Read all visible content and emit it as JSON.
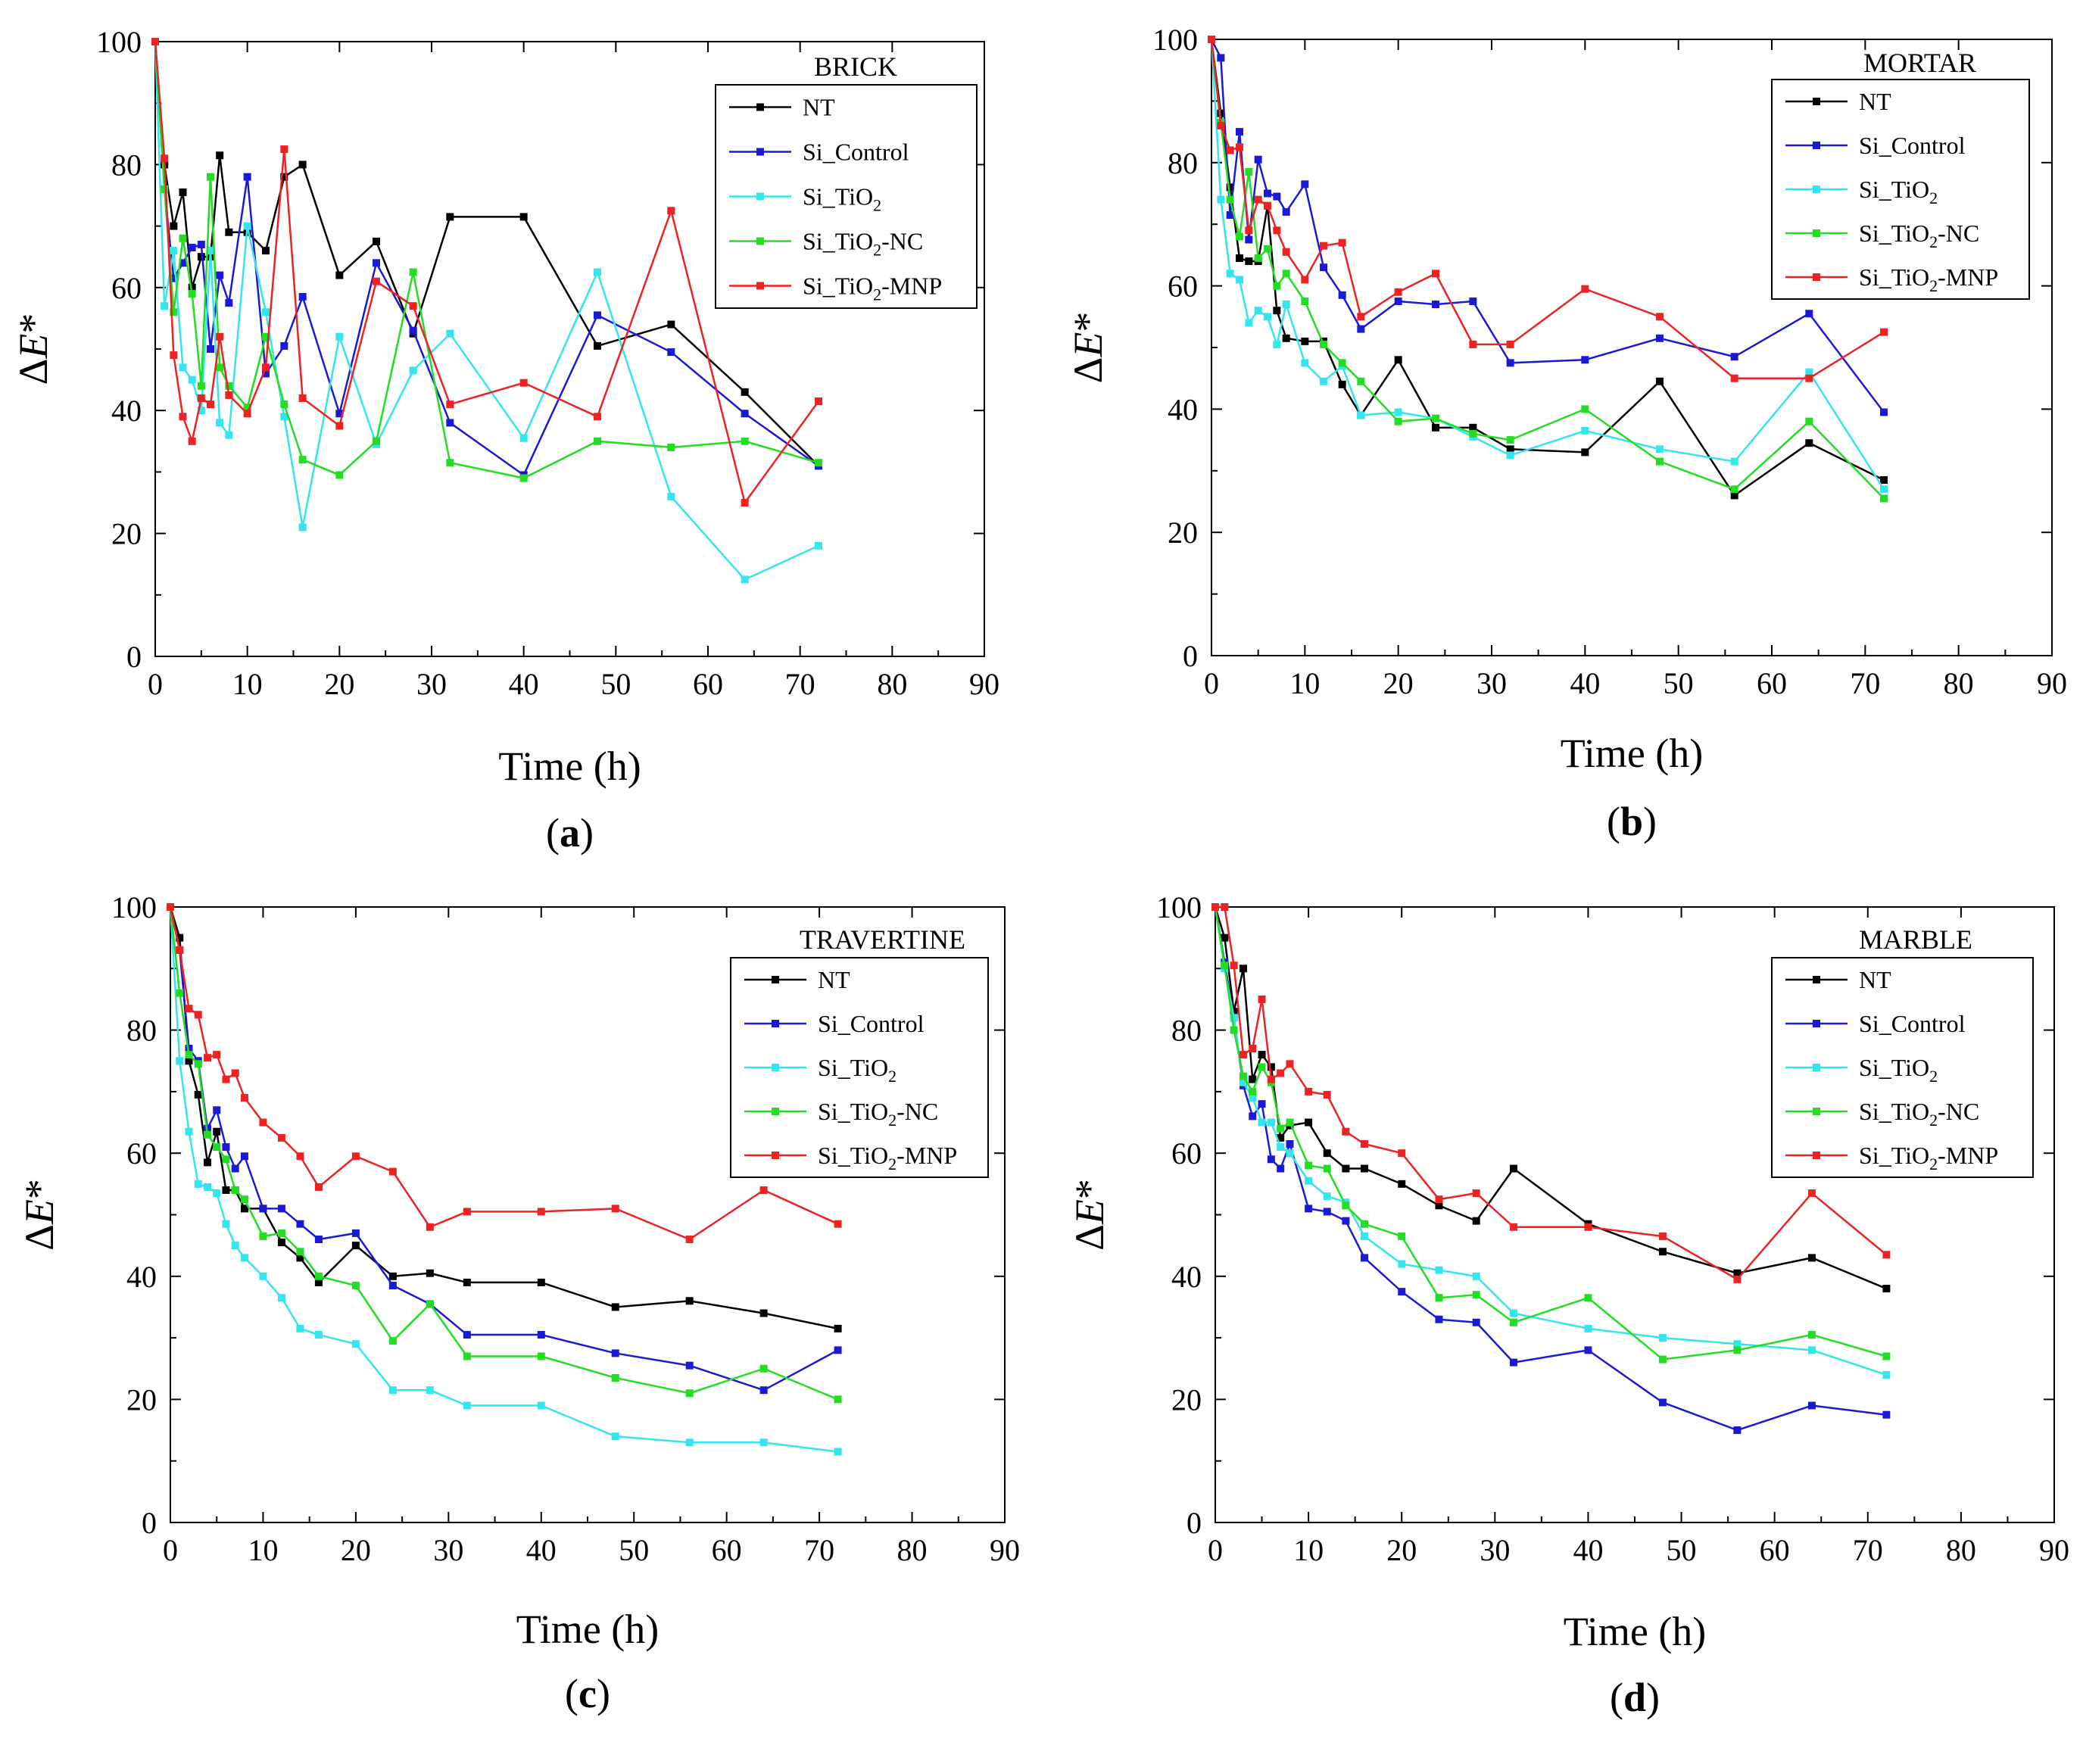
{
  "figure": {
    "xlabel": "Time (h)",
    "ylabel_prefix": "Δ",
    "ylabel_var": "E",
    "ylabel_suffix": "*"
  },
  "series_meta": [
    {
      "key": "NT",
      "color": "#000000",
      "parts": [
        {
          "t": "NT"
        }
      ]
    },
    {
      "key": "Si_Control",
      "color": "#1a1ad6",
      "parts": [
        {
          "t": "Si_Control"
        }
      ]
    },
    {
      "key": "Si_TiO2",
      "color": "#33e5ee",
      "parts": [
        {
          "t": "Si_TiO"
        },
        {
          "t": "2",
          "sub": true
        }
      ]
    },
    {
      "key": "Si_TiO2-NC",
      "color": "#22dd22",
      "parts": [
        {
          "t": "Si_TiO"
        },
        {
          "t": "2",
          "sub": true
        },
        {
          "t": "-NC"
        }
      ]
    },
    {
      "key": "Si_TiO2-MNP",
      "color": "#ee2222",
      "parts": [
        {
          "t": "Si_TiO"
        },
        {
          "t": "2",
          "sub": true
        },
        {
          "t": "-MNP"
        }
      ]
    }
  ],
  "chart_data": [
    {
      "type": "line",
      "panel_label": "a",
      "title": "BRICK",
      "xlabel": "Time (h)",
      "ylabel": "ΔE*",
      "xlim": [
        0,
        90
      ],
      "ylim": [
        0,
        100
      ],
      "xticks": [
        0,
        10,
        20,
        30,
        40,
        50,
        60,
        70,
        80,
        90
      ],
      "yticks": [
        0,
        20,
        40,
        60,
        80,
        100
      ],
      "legend_position": "top-right",
      "grid": false,
      "x": [
        0,
        1,
        2,
        3,
        4,
        5,
        6,
        7,
        8,
        10,
        12,
        14,
        16,
        20,
        24,
        28,
        32,
        40,
        48,
        56,
        64,
        72
      ],
      "series": [
        {
          "name": "NT",
          "values": [
            100,
            80,
            70,
            75.5,
            60,
            65,
            65,
            81.5,
            69,
            69,
            66,
            78,
            80,
            62,
            67.5,
            52.5,
            71.5,
            71.5,
            50.5,
            54,
            43,
            31
          ]
        },
        {
          "name": "Si_Control",
          "values": [
            100,
            76,
            61.5,
            64,
            66.5,
            67,
            50,
            62,
            57.5,
            78,
            46,
            50.5,
            58.5,
            39.5,
            64,
            53,
            38,
            29.5,
            55.5,
            49.5,
            39.5,
            31
          ]
        },
        {
          "name": "Si_TiO2",
          "values": [
            100,
            57,
            66,
            47,
            45,
            40,
            66,
            38,
            36,
            70,
            56,
            39,
            21,
            52,
            34.5,
            46.5,
            52.5,
            35.5,
            62.5,
            26,
            12.5,
            18
          ]
        },
        {
          "name": "Si_TiO2-NC",
          "values": [
            100,
            76,
            56,
            68,
            59,
            44,
            78,
            47,
            44,
            40.5,
            52,
            41,
            32,
            29.5,
            35,
            62.5,
            31.5,
            29,
            35,
            34,
            35,
            31.5
          ]
        },
        {
          "name": "Si_TiO2-MNP",
          "values": [
            100,
            81,
            49,
            39,
            35,
            42,
            41,
            52,
            42.5,
            39.5,
            47,
            82.5,
            42,
            37.5,
            61,
            57,
            41,
            44.5,
            39,
            72.5,
            25,
            41.5
          ]
        }
      ]
    },
    {
      "type": "line",
      "panel_label": "b",
      "title": "MORTAR",
      "xlabel": "Time (h)",
      "ylabel": "ΔE*",
      "xlim": [
        0,
        90
      ],
      "ylim": [
        0,
        100
      ],
      "xticks": [
        0,
        10,
        20,
        30,
        40,
        50,
        60,
        70,
        80,
        90
      ],
      "yticks": [
        0,
        20,
        40,
        60,
        80,
        100
      ],
      "legend_position": "top-right",
      "grid": false,
      "x": [
        0,
        1,
        2,
        3,
        4,
        5,
        6,
        7,
        8,
        10,
        12,
        14,
        16,
        20,
        24,
        28,
        32,
        40,
        48,
        56,
        64,
        72
      ],
      "series": [
        {
          "name": "NT",
          "values": [
            100,
            88,
            76,
            64.5,
            64,
            64,
            73,
            56,
            51.5,
            51,
            51,
            44,
            39,
            48,
            37,
            37,
            33.5,
            33,
            44.5,
            26,
            34.5,
            28.5
          ]
        },
        {
          "name": "Si_Control",
          "values": [
            100,
            97,
            71.5,
            85,
            67.5,
            80.5,
            75,
            74.5,
            72,
            76.5,
            63,
            58.5,
            53,
            57.5,
            57,
            57.5,
            47.5,
            48,
            51.5,
            48.5,
            55.5,
            39.5
          ]
        },
        {
          "name": "Si_TiO2",
          "values": [
            100,
            74,
            62,
            61,
            54,
            56,
            55,
            50.5,
            57,
            47.5,
            44.5,
            47,
            39,
            39.5,
            38.5,
            35.5,
            32.5,
            36.5,
            33.5,
            31.5,
            46,
            27
          ]
        },
        {
          "name": "Si_TiO2-NC",
          "values": [
            100,
            86.5,
            74,
            68,
            78.5,
            64.5,
            66,
            60,
            62,
            57.5,
            50.5,
            47.5,
            44.5,
            38,
            38.5,
            36,
            35,
            40,
            31.5,
            27,
            38,
            25.5
          ]
        },
        {
          "name": "Si_TiO2-MNP",
          "values": [
            100,
            86,
            82,
            82.5,
            69,
            74,
            73,
            69,
            65.5,
            61,
            66.5,
            67,
            55,
            59,
            62,
            50.5,
            50.5,
            59.5,
            55,
            45,
            45,
            52.5
          ]
        }
      ]
    },
    {
      "type": "line",
      "panel_label": "c",
      "title": "TRAVERTINE",
      "xlabel": "Time (h)",
      "ylabel": "ΔE*",
      "xlim": [
        0,
        90
      ],
      "ylim": [
        0,
        100
      ],
      "xticks": [
        0,
        10,
        20,
        30,
        40,
        50,
        60,
        70,
        80,
        90
      ],
      "yticks": [
        0,
        20,
        40,
        60,
        80,
        100
      ],
      "legend_position": "top-right",
      "grid": false,
      "x": [
        0,
        1,
        2,
        3,
        4,
        5,
        6,
        7,
        8,
        10,
        12,
        14,
        16,
        20,
        24,
        28,
        32,
        40,
        48,
        56,
        64,
        72
      ],
      "series": [
        {
          "name": "NT",
          "values": [
            100,
            95,
            75,
            69.5,
            58.5,
            63.5,
            54,
            54,
            51,
            51,
            45.5,
            43,
            39,
            45,
            40,
            40.5,
            39,
            39,
            35,
            36,
            34,
            31.5
          ]
        },
        {
          "name": "Si_Control",
          "values": [
            100,
            93,
            77,
            75,
            64,
            67,
            61,
            57.5,
            59.5,
            51,
            51,
            48.5,
            46,
            47,
            38.5,
            35.5,
            30.5,
            30.5,
            27.5,
            25.5,
            21.5,
            28
          ]
        },
        {
          "name": "Si_TiO2",
          "values": [
            100,
            75,
            63.5,
            55,
            54.5,
            53.5,
            48.5,
            45,
            43,
            40,
            36.5,
            31.5,
            30.5,
            29,
            21.5,
            21.5,
            19,
            19,
            14,
            13,
            13,
            11.5
          ]
        },
        {
          "name": "Si_TiO2-NC",
          "values": [
            100,
            86,
            76,
            74.5,
            63,
            61,
            59,
            54,
            52.5,
            46.5,
            47,
            44,
            40,
            38.5,
            29.5,
            35.5,
            27,
            27,
            23.5,
            21,
            25,
            20
          ]
        },
        {
          "name": "Si_TiO2-MNP",
          "values": [
            100,
            93,
            83.5,
            82.5,
            75.5,
            76,
            72,
            73,
            69,
            65,
            62.5,
            59.5,
            54.5,
            59.5,
            57,
            48,
            50.5,
            50.5,
            51,
            46,
            54,
            48.5
          ]
        }
      ]
    },
    {
      "type": "line",
      "panel_label": "d",
      "title": "MARBLE",
      "xlabel": "Time (h)",
      "ylabel": "ΔE*",
      "xlim": [
        0,
        90
      ],
      "ylim": [
        0,
        100
      ],
      "xticks": [
        0,
        10,
        20,
        30,
        40,
        50,
        60,
        70,
        80,
        90
      ],
      "yticks": [
        0,
        20,
        40,
        60,
        80,
        100
      ],
      "legend_position": "top-right",
      "grid": false,
      "x": [
        0,
        1,
        2,
        3,
        4,
        5,
        6,
        7,
        8,
        10,
        12,
        14,
        16,
        20,
        24,
        28,
        32,
        40,
        48,
        56,
        64,
        72
      ],
      "series": [
        {
          "name": "NT",
          "values": [
            100,
            95,
            83,
            90,
            72,
            76,
            74,
            62.5,
            64.5,
            65,
            60,
            57.5,
            57.5,
            55,
            51.5,
            49,
            57.5,
            48.5,
            44,
            40.5,
            43,
            38
          ]
        },
        {
          "name": "Si_Control",
          "values": [
            100,
            91,
            82,
            71,
            66,
            68,
            59,
            57.5,
            61.5,
            51,
            50.5,
            49,
            43,
            37.5,
            33,
            32.5,
            26,
            28,
            19.5,
            15,
            19,
            17.5
          ]
        },
        {
          "name": "Si_TiO2",
          "values": [
            100,
            90,
            82,
            71.5,
            69,
            65,
            65,
            61,
            60,
            55.5,
            53,
            52,
            46.5,
            42,
            41,
            40,
            34,
            31.5,
            30,
            29,
            28,
            24
          ]
        },
        {
          "name": "Si_TiO2-NC",
          "values": [
            100,
            90.5,
            80,
            72.5,
            70,
            74,
            71.5,
            64,
            65,
            58,
            57.5,
            51.5,
            48.5,
            46.5,
            36.5,
            37,
            32.5,
            36.5,
            26.5,
            28,
            30.5,
            27
          ]
        },
        {
          "name": "Si_TiO2-MNP",
          "values": [
            100,
            100,
            90.5,
            76,
            77,
            85,
            72,
            73,
            74.5,
            70,
            69.5,
            63.5,
            61.5,
            60,
            52.5,
            53.5,
            48,
            48,
            46.5,
            39.5,
            53.5,
            43.5
          ]
        }
      ]
    }
  ]
}
